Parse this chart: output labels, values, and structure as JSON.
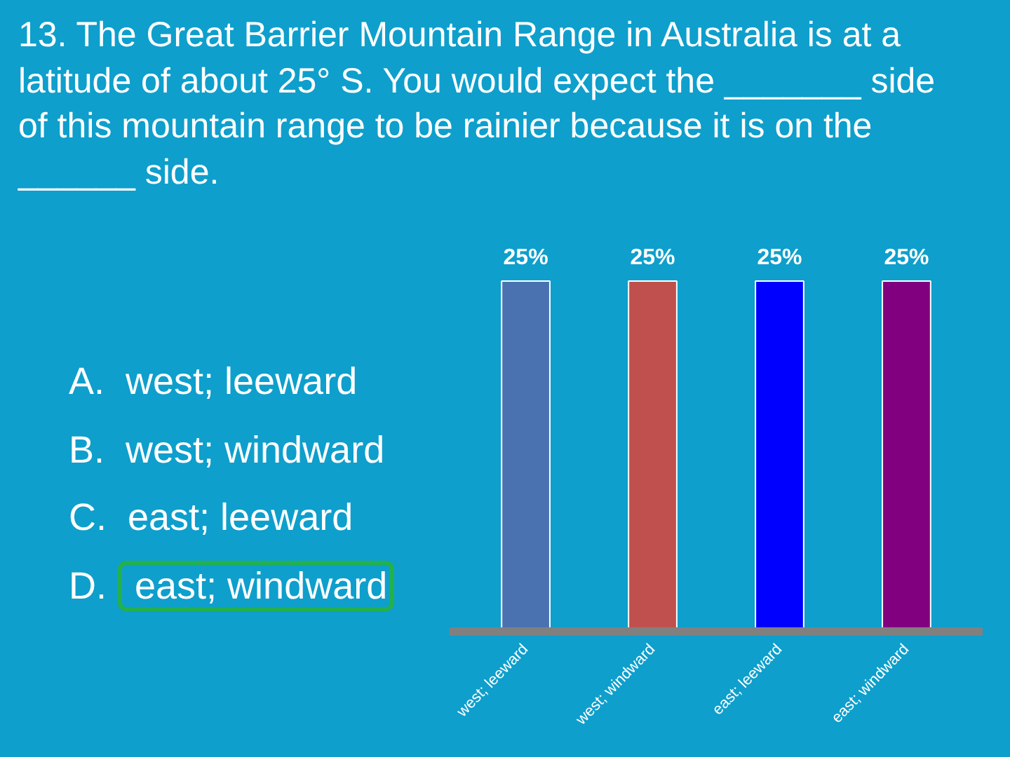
{
  "chart_data": {
    "type": "bar",
    "title": "13.  The Great Barrier Mountain Range in Australia is at a latitude of about 25° S.   You would expect the _______ side of this mountain range to be rainier because it is on the ______ side.",
    "annotations": [
      "A.  west; leeward",
      "B.  west; windward",
      "C.  east; leeward",
      "D.  east; windward"
    ],
    "categories": [
      "west; leeward",
      "west; windward",
      "east; leeward",
      "east; windward"
    ],
    "values": [
      25,
      25,
      25,
      25
    ],
    "value_labels": [
      "25%",
      "25%",
      "25%",
      "25%"
    ],
    "colors": [
      "#4a72b0",
      "#c0504d",
      "#0000ff",
      "#800080"
    ]
  }
}
